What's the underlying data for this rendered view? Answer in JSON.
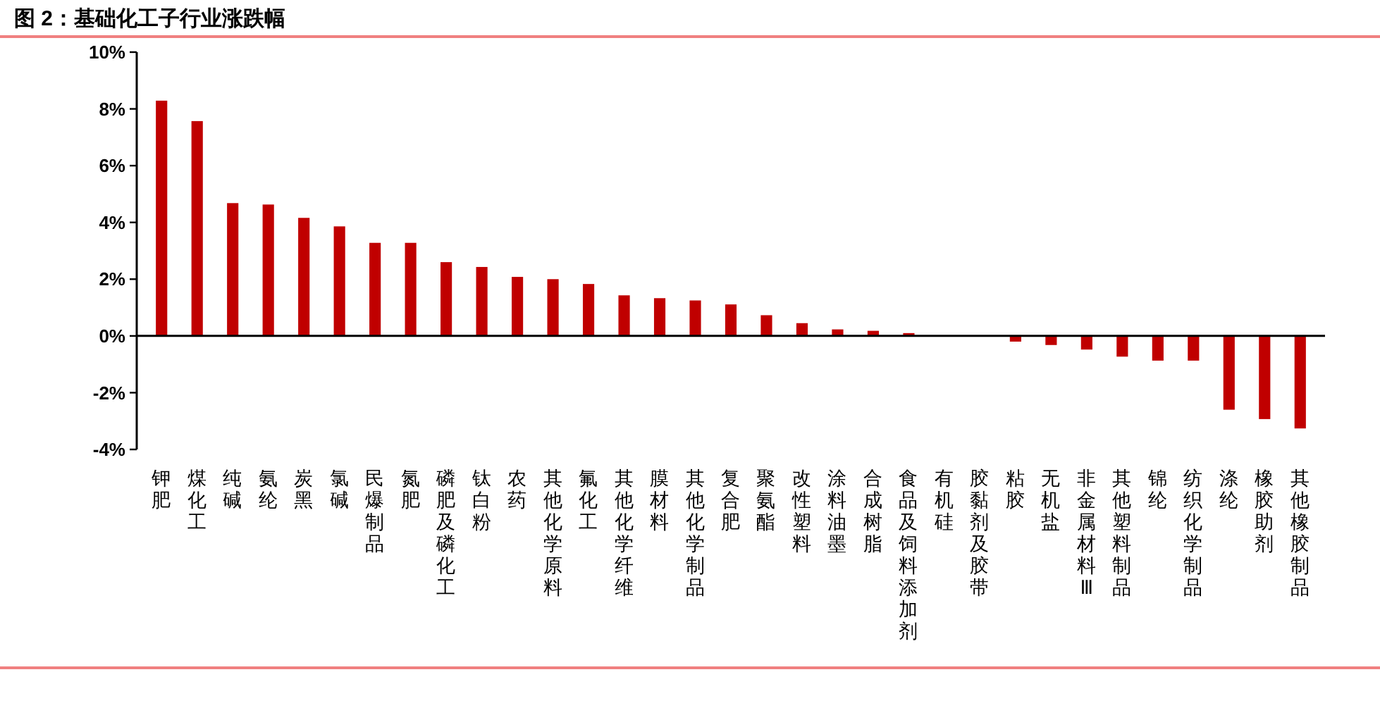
{
  "chart_data": {
    "type": "bar",
    "title": "图 2：基础化工子行业涨跌幅",
    "categories": [
      "钾肥",
      "煤化工",
      "纯碱",
      "氨纶",
      "炭黑",
      "氯碱",
      "民爆制品",
      "氮肥",
      "磷肥及磷化工",
      "钛白粉",
      "农药",
      "其他化学原料",
      "氟化工",
      "其他化学纤维",
      "膜材料",
      "其他化学制品",
      "复合肥",
      "聚氨酯",
      "改性塑料",
      "涂料油墨",
      "合成树脂",
      "食品及饲料添加剂",
      "有机硅",
      "胶黏剂及胶带",
      "粘胶",
      "无机盐",
      "非金属材料Ⅲ",
      "其他塑料制品",
      "锦纶",
      "纺织化学制品",
      "涤纶",
      "橡胶助剂",
      "其他橡胶制品"
    ],
    "values": [
      8.29,
      7.57,
      4.68,
      4.63,
      4.16,
      3.86,
      3.28,
      3.28,
      2.6,
      2.43,
      2.08,
      2.0,
      1.83,
      1.43,
      1.33,
      1.25,
      1.11,
      0.73,
      0.45,
      0.23,
      0.18,
      0.1,
      0.0,
      0.0,
      -0.2,
      -0.32,
      -0.48,
      -0.73,
      -0.87,
      -0.87,
      -2.6,
      -2.93,
      -3.26
    ],
    "color": "#c00000",
    "ylim": [
      -4,
      10
    ],
    "yticks": [
      {
        "value": -4,
        "label": "-4%"
      },
      {
        "value": -2,
        "label": "-2%"
      },
      {
        "value": 0,
        "label": "0%"
      },
      {
        "value": 2,
        "label": "2%"
      },
      {
        "value": 4,
        "label": "4%"
      },
      {
        "value": 6,
        "label": "6%"
      },
      {
        "value": 8,
        "label": "8%"
      },
      {
        "value": 10,
        "label": "10%"
      }
    ]
  }
}
